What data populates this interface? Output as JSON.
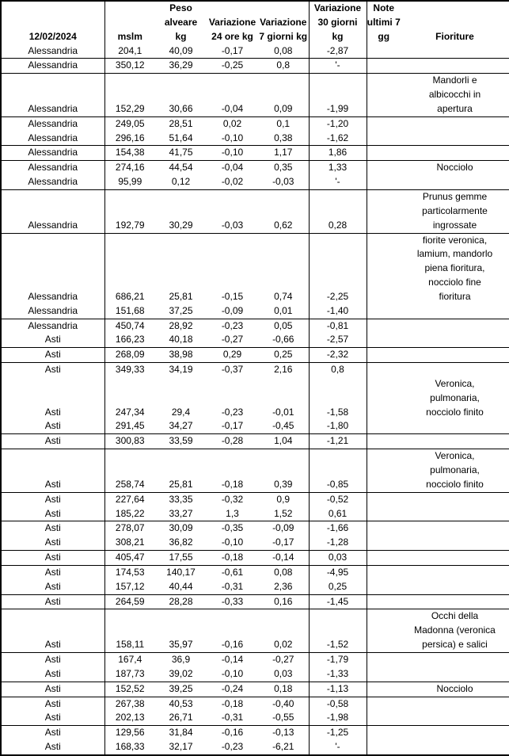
{
  "report_date": "12/02/2024",
  "colors": {
    "border": "#000000",
    "text": "#000000",
    "background": "#ffffff"
  },
  "table": {
    "headers": {
      "date": "12/02/2024",
      "mslm": "mslm",
      "peso": "Peso\nalveare\nkg",
      "var24": "Variazione\n24 ore kg",
      "var7": "Variazione\n7 giorni kg",
      "var30": "Variazione\n30 giorni\nkg",
      "note": "Note\nultimi 7\ngg",
      "fioriture": "Fioriture"
    },
    "rows": [
      {
        "loc": "Alessandria",
        "mslm": "204,1",
        "peso": "40,09",
        "v24": "-0,17",
        "v7": "0,08",
        "v30": "-2,87",
        "note": "",
        "fior": "",
        "sep": true
      },
      {
        "loc": "Alessandria",
        "mslm": "350,12",
        "peso": "36,29",
        "v24": "-0,25",
        "v7": "0,8",
        "v30": "'-",
        "note": "",
        "fior": "",
        "sep": true
      },
      {
        "loc": "Alessandria",
        "mslm": "152,29",
        "peso": "30,66",
        "v24": "-0,04",
        "v7": "0,09",
        "v30": "-1,99",
        "note": "",
        "fior": "Mandorli e\nalbicocchi in\napertura",
        "sep": true
      },
      {
        "loc": "Alessandria",
        "mslm": "249,05",
        "peso": "28,51",
        "v24": "0,02",
        "v7": "0,1",
        "v30": "-1,20",
        "note": "",
        "fior": "",
        "sep": false
      },
      {
        "loc": "Alessandria",
        "mslm": "296,16",
        "peso": "51,64",
        "v24": "-0,10",
        "v7": "0,38",
        "v30": "-1,62",
        "note": "",
        "fior": "",
        "sep": true
      },
      {
        "loc": "Alessandria",
        "mslm": "154,38",
        "peso": "41,75",
        "v24": "-0,10",
        "v7": "1,17",
        "v30": "1,86",
        "note": "",
        "fior": "",
        "sep": true
      },
      {
        "loc": "Alessandria",
        "mslm": "274,16",
        "peso": "44,54",
        "v24": "-0,04",
        "v7": "0,35",
        "v30": "1,33",
        "note": "",
        "fior": "Nocciolo",
        "sep": false
      },
      {
        "loc": "Alessandria",
        "mslm": "95,99",
        "peso": "0,12",
        "v24": "-0,02",
        "v7": "-0,03",
        "v30": "'-",
        "note": "",
        "fior": "",
        "sep": true
      },
      {
        "loc": "Alessandria",
        "mslm": "192,79",
        "peso": "30,29",
        "v24": "-0,03",
        "v7": "0,62",
        "v30": "0,28",
        "note": "",
        "fior": "Prunus gemme\nparticolarmente\ningrossate",
        "sep": true
      },
      {
        "loc": "Alessandria",
        "mslm": "686,21",
        "peso": "25,81",
        "v24": "-0,15",
        "v7": "0,74",
        "v30": "-2,25",
        "note": "",
        "fior": "fiorite veronica,\nlamium, mandorlo\npiena fioritura,\nnocciolo fine\nfioritura",
        "sep": false
      },
      {
        "loc": "Alessandria",
        "mslm": "151,68",
        "peso": "37,25",
        "v24": "-0,09",
        "v7": "0,01",
        "v30": "-1,40",
        "note": "",
        "fior": "",
        "sep": true
      },
      {
        "loc": "Alessandria",
        "mslm": "450,74",
        "peso": "28,92",
        "v24": "-0,23",
        "v7": "0,05",
        "v30": "-0,81",
        "note": "",
        "fior": "",
        "sep": false
      },
      {
        "loc": "Asti",
        "mslm": "166,23",
        "peso": "40,18",
        "v24": "-0,27",
        "v7": "-0,66",
        "v30": "-2,57",
        "note": "",
        "fior": "",
        "sep": true
      },
      {
        "loc": "Asti",
        "mslm": "268,09",
        "peso": "38,98",
        "v24": "0,29",
        "v7": "0,25",
        "v30": "-2,32",
        "note": "",
        "fior": "",
        "sep": true
      },
      {
        "loc": "Asti",
        "mslm": "349,33",
        "peso": "34,19",
        "v24": "-0,37",
        "v7": "2,16",
        "v30": "0,8",
        "note": "",
        "fior": "",
        "sep": false
      },
      {
        "loc": "Asti",
        "mslm": "247,34",
        "peso": "29,4",
        "v24": "-0,23",
        "v7": "-0,01",
        "v30": "-1,58",
        "note": "",
        "fior": "Veronica,\npulmonaria,\nnocciolo finito",
        "sep": false
      },
      {
        "loc": "Asti",
        "mslm": "291,45",
        "peso": "34,27",
        "v24": "-0,17",
        "v7": "-0,45",
        "v30": "-1,80",
        "note": "",
        "fior": "",
        "sep": true
      },
      {
        "loc": "Asti",
        "mslm": "300,83",
        "peso": "33,59",
        "v24": "-0,28",
        "v7": "1,04",
        "v30": "-1,21",
        "note": "",
        "fior": "",
        "sep": true
      },
      {
        "loc": "Asti",
        "mslm": "258,74",
        "peso": "25,81",
        "v24": "-0,18",
        "v7": "0,39",
        "v30": "-0,85",
        "note": "",
        "fior": "Veronica,\npulmonaria,\nnocciolo finito",
        "sep": true
      },
      {
        "loc": "Asti",
        "mslm": "227,64",
        "peso": "33,35",
        "v24": "-0,32",
        "v7": "0,9",
        "v30": "-0,52",
        "note": "",
        "fior": "",
        "sep": false
      },
      {
        "loc": "Asti",
        "mslm": "185,22",
        "peso": "33,27",
        "v24": "1,3",
        "v7": "1,52",
        "v30": "0,61",
        "note": "",
        "fior": "",
        "sep": true
      },
      {
        "loc": "Asti",
        "mslm": "278,07",
        "peso": "30,09",
        "v24": "-0,35",
        "v7": "-0,09",
        "v30": "-1,66",
        "note": "",
        "fior": "",
        "sep": false
      },
      {
        "loc": "Asti",
        "mslm": "308,21",
        "peso": "36,82",
        "v24": "-0,10",
        "v7": "-0,17",
        "v30": "-1,28",
        "note": "",
        "fior": "",
        "sep": true
      },
      {
        "loc": "Asti",
        "mslm": "405,47",
        "peso": "17,55",
        "v24": "-0,18",
        "v7": "-0,14",
        "v30": "0,03",
        "note": "",
        "fior": "",
        "sep": true
      },
      {
        "loc": "Asti",
        "mslm": "174,53",
        "peso": "140,17",
        "v24": "-0,61",
        "v7": "0,08",
        "v30": "-4,95",
        "note": "",
        "fior": "",
        "sep": false
      },
      {
        "loc": "Asti",
        "mslm": "157,12",
        "peso": "40,44",
        "v24": "-0,31",
        "v7": "2,36",
        "v30": "0,25",
        "note": "",
        "fior": "",
        "sep": true
      },
      {
        "loc": "Asti",
        "mslm": "264,59",
        "peso": "28,28",
        "v24": "-0,33",
        "v7": "0,16",
        "v30": "-1,45",
        "note": "",
        "fior": "",
        "sep": true
      },
      {
        "loc": "Asti",
        "mslm": "158,11",
        "peso": "35,97",
        "v24": "-0,16",
        "v7": "0,02",
        "v30": "-1,52",
        "note": "",
        "fior": "Occhi della\nMadonna (veronica\npersica) e salici",
        "sep": true
      },
      {
        "loc": "Asti",
        "mslm": "167,4",
        "peso": "36,9",
        "v24": "-0,14",
        "v7": "-0,27",
        "v30": "-1,79",
        "note": "",
        "fior": "",
        "sep": false
      },
      {
        "loc": "Asti",
        "mslm": "187,73",
        "peso": "39,02",
        "v24": "-0,10",
        "v7": "0,03",
        "v30": "-1,33",
        "note": "",
        "fior": "",
        "sep": true
      },
      {
        "loc": "Asti",
        "mslm": "152,52",
        "peso": "39,25",
        "v24": "-0,24",
        "v7": "0,18",
        "v30": "-1,13",
        "note": "",
        "fior": "Nocciolo",
        "sep": true
      },
      {
        "loc": "Asti",
        "mslm": "267,38",
        "peso": "40,53",
        "v24": "-0,18",
        "v7": "-0,40",
        "v30": "-0,58",
        "note": "",
        "fior": "",
        "sep": false
      },
      {
        "loc": "Asti",
        "mslm": "202,13",
        "peso": "26,71",
        "v24": "-0,31",
        "v7": "-0,55",
        "v30": "-1,98",
        "note": "",
        "fior": "",
        "sep": true
      },
      {
        "loc": "Asti",
        "mslm": "129,56",
        "peso": "31,84",
        "v24": "-0,16",
        "v7": "-0,13",
        "v30": "-1,25",
        "note": "",
        "fior": "",
        "sep": false
      },
      {
        "loc": "Asti",
        "mslm": "168,33",
        "peso": "32,17",
        "v24": "-0,23",
        "v7": "-6,21",
        "v30": "'-",
        "note": "",
        "fior": "",
        "sep": false
      }
    ]
  }
}
